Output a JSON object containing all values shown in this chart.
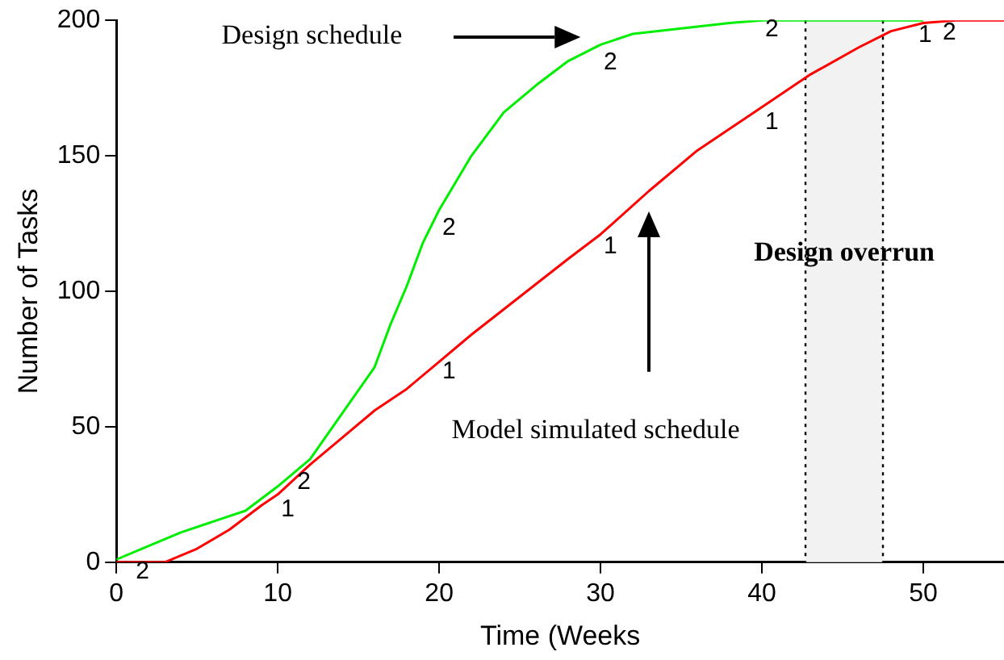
{
  "chart_data": {
    "type": "line",
    "xlabel": "Time (Weeks",
    "ylabel": "Number of Tasks",
    "xlim": [
      0,
      55
    ],
    "xticks": [
      0,
      10,
      20,
      30,
      40,
      50
    ],
    "ylim": [
      0,
      200
    ],
    "yticks": [
      0,
      50,
      100,
      150,
      200
    ],
    "grid": false,
    "legend": false,
    "marker": "none",
    "series": [
      {
        "color": "#00ee00",
        "x": [
          0,
          2,
          4,
          6,
          8,
          10,
          12,
          14,
          16,
          17,
          18,
          19,
          20,
          22,
          24,
          26,
          28,
          30,
          32,
          35,
          38,
          40,
          50
        ],
        "values": [
          1,
          6,
          11,
          15,
          19,
          28,
          38,
          55,
          72,
          88,
          102,
          118,
          130,
          150,
          166,
          176,
          185,
          191,
          195,
          197,
          199,
          200,
          200
        ]
      },
      {
        "color": "#ff0000",
        "x": [
          0,
          3,
          5,
          7,
          9,
          10,
          12,
          14,
          16,
          18,
          20,
          22,
          25,
          28,
          30,
          33,
          36,
          40,
          43,
          46,
          48,
          50,
          52,
          55
        ],
        "values": [
          0,
          0,
          5,
          12,
          21,
          25,
          36,
          46,
          56,
          64,
          74,
          84,
          98,
          112,
          121,
          137,
          152,
          168,
          180,
          190,
          196,
          199,
          200,
          200
        ]
      }
    ],
    "bands": [
      {
        "axis": "x",
        "from": 42.7,
        "to": 47.5,
        "label": "Design overrun",
        "color": "#f2f2f2"
      }
    ],
    "ref_lines": [
      {
        "axis": "x",
        "value": 42.7,
        "line_style": "dotted"
      },
      {
        "axis": "x",
        "value": 47.5,
        "line_style": "dotted"
      }
    ],
    "annotations": [
      "Design schedule",
      "Model simulated schedule",
      {
        "text": "2",
        "x": 1,
        "y": 0
      },
      {
        "text": "2",
        "x": 11,
        "y": 33
      },
      {
        "text": "2",
        "x": 20,
        "y": 127
      },
      {
        "text": "2",
        "x": 30,
        "y": 188
      },
      {
        "text": "2",
        "x": 40,
        "y": 200
      },
      {
        "text": "2",
        "x": 51,
        "y": 199
      },
      {
        "text": "1",
        "x": 10,
        "y": 23
      },
      {
        "text": "1",
        "x": 20,
        "y": 74
      },
      {
        "text": "1",
        "x": 30,
        "y": 120
      },
      {
        "text": "1",
        "x": 40,
        "y": 166
      },
      {
        "text": "1",
        "x": 49.5,
        "y": 198
      }
    ]
  }
}
